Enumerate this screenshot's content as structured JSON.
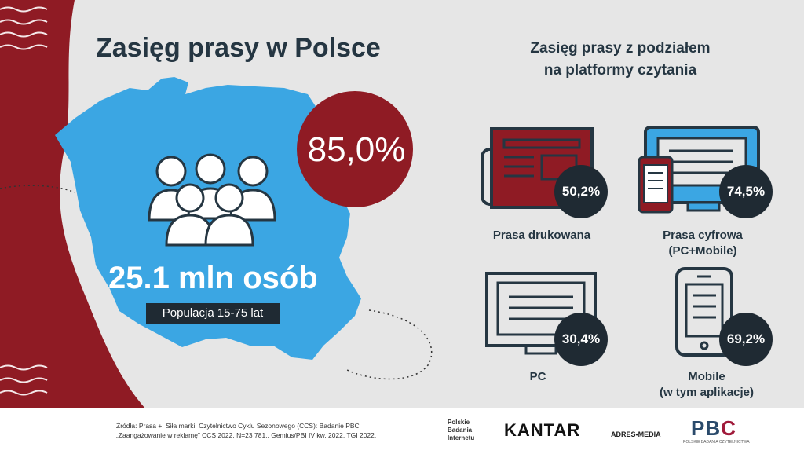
{
  "header": {
    "title": "Zasięg prasy w Polsce",
    "right_title_line1": "Zasięg prasy z podziałem",
    "right_title_line2": "na platformy czytania"
  },
  "hero": {
    "reach_percent": "85,0%",
    "persons": "25.1 mln osób",
    "population_tag": "Populacja 15-75 lat"
  },
  "platforms": [
    {
      "label": "Prasa drukowana",
      "label2": "",
      "value": "50,2%",
      "icon": "newspaper-icon"
    },
    {
      "label": "Prasa cyfrowa",
      "label2": "(PC+Mobile)",
      "value": "74,5%",
      "icon": "monitor-phone-icon"
    },
    {
      "label": "PC",
      "label2": "",
      "value": "30,4%",
      "icon": "desktop-monitor-icon"
    },
    {
      "label": "Mobile",
      "label2": "(w tym aplikacje)",
      "value": "69,2%",
      "icon": "smartphone-icon"
    }
  ],
  "footer": {
    "sources_line1": "Źródła: Prasa +, Siła marki: Czytelnictwo Cyklu Sezonowego (CCS): Badanie PBC",
    "sources_line2": "„Zaangażowanie w reklamę” CCS 2022, N=23 781,, Gemius/PBI IV kw. 2022, TGI 2022.",
    "logo_pbi_1": "Polskie",
    "logo_pbi_2": "Badania",
    "logo_pbi_3": "Internetu",
    "logo_kantar": "KANTAR",
    "logo_adres": "ADRES•MEDIA",
    "logo_pbc_1": "PB",
    "logo_pbc_2": "C",
    "logo_pbc_sub": "POLSKIE BADANIA CZYTELNICTWA"
  },
  "colors": {
    "maroon": "#8f1b24",
    "blue": "#3ba6e3",
    "navy": "#253642",
    "dark": "#1f2a33",
    "badge_red": "#9a1f2b"
  }
}
